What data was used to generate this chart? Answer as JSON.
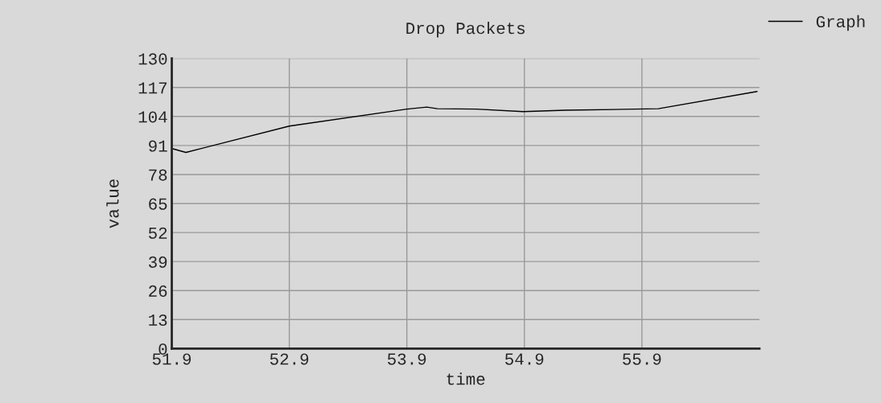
{
  "chart_data": {
    "type": "line",
    "title": "Drop Packets",
    "xlabel": "time",
    "ylabel": "value",
    "x": [
      51.91,
      52.02,
      52.9,
      53.9,
      54.07,
      54.16,
      54.49,
      54.89,
      55.25,
      55.74,
      56.04,
      56.88
    ],
    "series": [
      {
        "name": "Graph",
        "color": "#000000",
        "values": [
          89.5,
          87.9,
          99.7,
          107.3,
          108.2,
          107.5,
          107.3,
          106.2,
          106.8,
          107.2,
          107.5,
          115.2
        ]
      }
    ],
    "xlim": [
      51.9,
      56.9
    ],
    "xticks": [
      51.9,
      52.9,
      53.9,
      54.9,
      55.9
    ],
    "ylim": [
      0,
      130
    ],
    "yticks": [
      0,
      13,
      26,
      39,
      52,
      65,
      78,
      91,
      104,
      117,
      130
    ],
    "grid": true,
    "legend": "top right",
    "marker": "none",
    "line_style": "solid"
  }
}
